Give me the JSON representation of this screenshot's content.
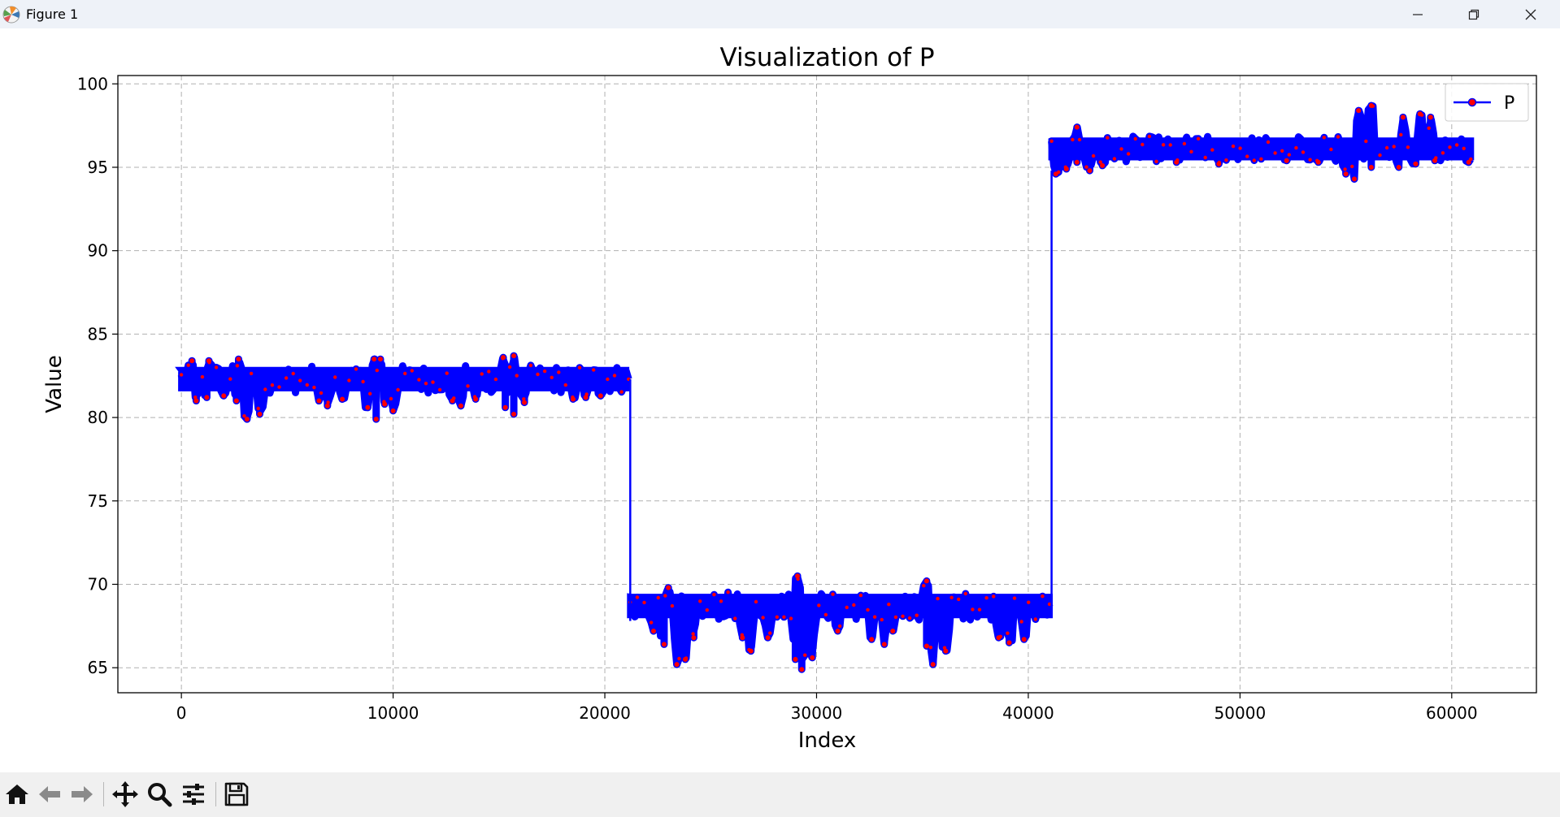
{
  "window": {
    "title": "Figure 1",
    "minimize_icon": "minimize-icon",
    "restore_icon": "restore-icon",
    "close_icon": "close-icon"
  },
  "toolbar": {
    "buttons": [
      "home-icon",
      "back-arrow-icon",
      "forward-arrow-icon",
      "pan-icon",
      "zoom-icon",
      "configure-subplots-icon",
      "save-icon"
    ]
  },
  "chart_data": {
    "type": "line",
    "title": "Visualization of P",
    "xlabel": "Index",
    "ylabel": "Value",
    "xlim": [
      -3000,
      64000
    ],
    "ylim": [
      63.5,
      100.5
    ],
    "xticks": [
      0,
      10000,
      20000,
      30000,
      40000,
      50000,
      60000
    ],
    "yticks": [
      65,
      70,
      75,
      80,
      85,
      90,
      95,
      100
    ],
    "grid": true,
    "legend": {
      "position": "top-right",
      "entries": [
        "P"
      ]
    },
    "line_color": "#0000ff",
    "marker_color": "#ff0000",
    "series": [
      {
        "name": "P",
        "segments": [
          {
            "x_start": 0,
            "x_end": 21200,
            "mean": 82.3,
            "spread": 0.6,
            "dips": [
              [
                700,
                81.0
              ],
              [
                1200,
                81.2
              ],
              [
                2000,
                81.3
              ],
              [
                2600,
                81.0
              ],
              [
                3100,
                79.9
              ],
              [
                3700,
                80.2
              ],
              [
                6500,
                81.0
              ],
              [
                6900,
                80.7
              ],
              [
                7600,
                81.1
              ],
              [
                8800,
                80.6
              ],
              [
                9200,
                79.9
              ],
              [
                9600,
                80.8
              ],
              [
                10000,
                80.4
              ],
              [
                12800,
                81.0
              ],
              [
                13200,
                80.7
              ],
              [
                13900,
                81.1
              ],
              [
                15300,
                80.6
              ],
              [
                15700,
                80.2
              ],
              [
                16200,
                80.9
              ],
              [
                18500,
                81.1
              ],
              [
                19100,
                81.2
              ],
              [
                19800,
                81.3
              ]
            ],
            "peaks": [
              [
                500,
                83.4
              ],
              [
                1300,
                83.4
              ],
              [
                2700,
                83.5
              ],
              [
                9100,
                83.5
              ],
              [
                9400,
                83.5
              ],
              [
                15200,
                83.6
              ],
              [
                15700,
                83.7
              ]
            ]
          },
          {
            "x_start": 21200,
            "x_end": 41100,
            "mean": 68.7,
            "spread": 0.6,
            "dips": [
              [
                22300,
                67.2
              ],
              [
                22800,
                66.4
              ],
              [
                23400,
                65.2
              ],
              [
                23800,
                65.5
              ],
              [
                24200,
                66.8
              ],
              [
                26500,
                66.8
              ],
              [
                26900,
                66.0
              ],
              [
                27700,
                66.8
              ],
              [
                29000,
                65.5
              ],
              [
                29300,
                64.9
              ],
              [
                29800,
                65.6
              ],
              [
                31000,
                67.2
              ],
              [
                32600,
                66.7
              ],
              [
                33200,
                66.4
              ],
              [
                33600,
                67.2
              ],
              [
                35200,
                66.3
              ],
              [
                35500,
                65.2
              ],
              [
                36100,
                66.0
              ],
              [
                38600,
                66.8
              ],
              [
                39100,
                66.5
              ],
              [
                39800,
                66.7
              ]
            ],
            "peaks": [
              [
                29100,
                70.5
              ],
              [
                35200,
                70.2
              ],
              [
                23000,
                69.8
              ]
            ]
          },
          {
            "x_start": 41100,
            "x_end": 61000,
            "mean": 96.1,
            "spread": 0.55,
            "dips": [
              [
                41300,
                94.6
              ],
              [
                41800,
                94.9
              ],
              [
                42300,
                95.3
              ],
              [
                42900,
                94.8
              ],
              [
                43500,
                95.1
              ],
              [
                47000,
                95.3
              ],
              [
                49000,
                95.2
              ],
              [
                52200,
                95.4
              ],
              [
                53700,
                95.3
              ],
              [
                55000,
                94.6
              ],
              [
                55400,
                94.3
              ],
              [
                56200,
                95.0
              ],
              [
                57500,
                95.0
              ],
              [
                58300,
                95.2
              ],
              [
                59200,
                95.4
              ],
              [
                60800,
                95.3
              ]
            ],
            "peaks": [
              [
                42300,
                97.4
              ],
              [
                56200,
                98.7
              ],
              [
                55600,
                98.4
              ],
              [
                57700,
                98.0
              ],
              [
                58500,
                98.2
              ],
              [
                59000,
                98.0
              ]
            ]
          }
        ],
        "transitions": [
          [
            21200,
            82.3,
            67.8
          ],
          [
            41100,
            68.7,
            94.8
          ]
        ]
      }
    ]
  }
}
